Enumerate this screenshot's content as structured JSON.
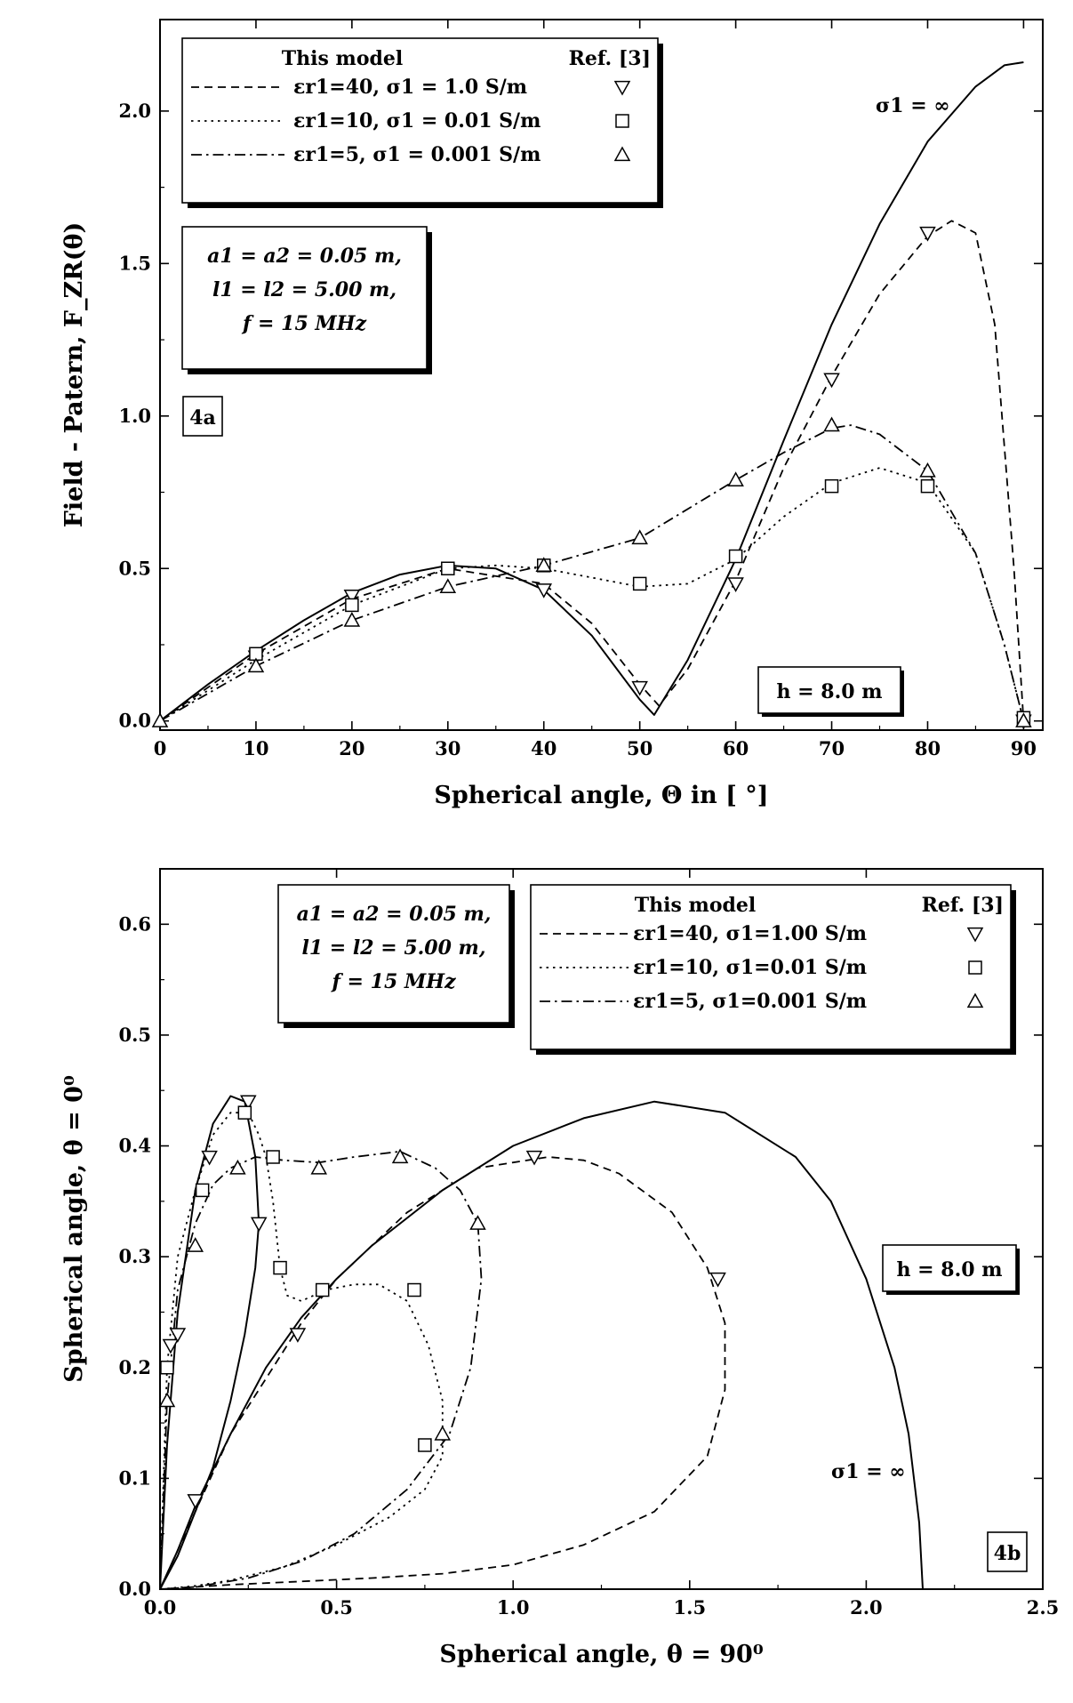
{
  "chart_data": [
    {
      "id": "4a",
      "type": "line",
      "tag": "4a",
      "xlabel": "Spherical angle, Θ in [ °]",
      "ylabel": "Field - Patern, F_ZR(θ)",
      "xlim": [
        0,
        92
      ],
      "ylim": [
        -0.03,
        2.3
      ],
      "xticks": [
        "0",
        "10",
        "20",
        "30",
        "40",
        "50",
        "60",
        "70",
        "80",
        "90"
      ],
      "yticks": [
        "0.0",
        "0.5",
        "1.0",
        "1.5",
        "2.0"
      ],
      "height_label": "h = 8.0 m",
      "sigma_inf_label": "σ1 = ∞",
      "params": [
        "a1 = a2 = 0.05 m,",
        "l1 = l2 = 5.00 m,",
        "f = 15 MHz"
      ],
      "legend": {
        "header_model": "This model",
        "header_ref": "Ref. [3]",
        "entries": [
          {
            "text": "εr1=40,  σ1 = 1.0 S/m",
            "style": "dashed",
            "marker": "triangle-down"
          },
          {
            "text": "εr1=10,  σ1 = 0.01 S/m",
            "style": "dotted",
            "marker": "square"
          },
          {
            "text": "εr1=5,    σ1 = 0.001 S/m",
            "style": "dashdot",
            "marker": "triangle-up"
          }
        ]
      },
      "series": [
        {
          "name": "σ1 = ∞",
          "style": "solid",
          "x": [
            0,
            5,
            10,
            15,
            20,
            25,
            30,
            35,
            40,
            45,
            50,
            51.5,
            55,
            60,
            65,
            70,
            75,
            80,
            85,
            88,
            90
          ],
          "y": [
            0,
            0.12,
            0.23,
            0.33,
            0.42,
            0.48,
            0.51,
            0.5,
            0.43,
            0.28,
            0.07,
            0.02,
            0.2,
            0.53,
            0.92,
            1.3,
            1.63,
            1.9,
            2.08,
            2.15,
            2.16
          ]
        },
        {
          "name": "εr1=40,  σ1 = 1.0 S/m",
          "style": "dashed",
          "x": [
            0,
            10,
            20,
            30,
            40,
            45,
            50,
            52,
            55,
            60,
            65,
            70,
            75,
            80,
            82.5,
            85,
            87,
            89,
            90
          ],
          "y": [
            0,
            0.22,
            0.4,
            0.5,
            0.45,
            0.32,
            0.12,
            0.05,
            0.17,
            0.46,
            0.83,
            1.13,
            1.4,
            1.59,
            1.64,
            1.6,
            1.3,
            0.5,
            0
          ]
        },
        {
          "name": "εr1=10,  σ1 = 0.01 S/m",
          "style": "dotted",
          "x": [
            0,
            10,
            20,
            30,
            35,
            40,
            45,
            50,
            55,
            60,
            65,
            70,
            75,
            80,
            85,
            88,
            90
          ],
          "y": [
            0,
            0.2,
            0.38,
            0.5,
            0.51,
            0.5,
            0.47,
            0.44,
            0.45,
            0.53,
            0.67,
            0.78,
            0.83,
            0.78,
            0.55,
            0.25,
            0
          ]
        },
        {
          "name": "εr1=5,    σ1 = 0.001 S/m",
          "style": "dashdot",
          "x": [
            0,
            10,
            20,
            30,
            40,
            50,
            60,
            65,
            70,
            72,
            75,
            80,
            85,
            88,
            90
          ],
          "y": [
            0,
            0.18,
            0.33,
            0.44,
            0.51,
            0.6,
            0.79,
            0.88,
            0.96,
            0.97,
            0.94,
            0.82,
            0.55,
            0.25,
            0
          ]
        }
      ],
      "markers": [
        {
          "series": "εr1=40,  σ1 = 1.0 S/m",
          "marker": "triangle-down",
          "x": [
            10,
            20,
            40,
            50,
            60,
            70,
            80,
            90
          ],
          "y": [
            0.21,
            0.41,
            0.43,
            0.11,
            0.45,
            1.12,
            1.6,
            0
          ]
        },
        {
          "series": "εr1=10,  σ1 = 0.01 S/m",
          "marker": "square",
          "x": [
            10,
            20,
            30,
            40,
            50,
            60,
            70,
            80,
            90
          ],
          "y": [
            0.22,
            0.38,
            0.5,
            0.51,
            0.45,
            0.54,
            0.77,
            0.77,
            0.01
          ]
        },
        {
          "series": "εr1=5,    σ1 = 0.001 S/m",
          "marker": "triangle-up",
          "x": [
            0,
            10,
            20,
            30,
            40,
            50,
            60,
            70,
            80,
            90
          ],
          "y": [
            0,
            0.18,
            0.33,
            0.44,
            0.51,
            0.6,
            0.79,
            0.97,
            0.82,
            0
          ]
        }
      ]
    },
    {
      "id": "4b",
      "type": "line",
      "tag": "4b",
      "xlabel": "Spherical angle, θ = 90⁰",
      "ylabel": "Spherical angle, θ = 0⁰",
      "xlim": [
        0,
        2.5
      ],
      "ylim": [
        0,
        0.65
      ],
      "xticks": [
        "0.0",
        "0.5",
        "1.0",
        "1.5",
        "2.0",
        "2.5"
      ],
      "yticks": [
        "0.0",
        "0.1",
        "0.2",
        "0.3",
        "0.4",
        "0.5",
        "0.6"
      ],
      "height_label": "h = 8.0 m",
      "sigma_inf_label": "σ1 = ∞",
      "params": [
        "a1 = a2 = 0.05 m,",
        "l1 = l2 = 5.00 m,",
        "f = 15 MHz"
      ],
      "legend": {
        "header_model": "This model",
        "header_ref": "Ref. [3]",
        "entries": [
          {
            "text": "εr1=40,  σ1=1.00 S/m",
            "style": "dashed",
            "marker": "triangle-down"
          },
          {
            "text": "εr1=10,  σ1=0.01 S/m",
            "style": "dotted",
            "marker": "square"
          },
          {
            "text": "εr1=5,    σ1=0.001 S/m",
            "style": "dashdot",
            "marker": "triangle-up"
          }
        ]
      },
      "series": [
        {
          "name": "σ1 = ∞ (main lobe)",
          "style": "solid",
          "x": [
            0,
            0.05,
            0.1,
            0.2,
            0.3,
            0.4,
            0.5,
            0.6,
            0.8,
            1.0,
            1.2,
            1.4,
            1.6,
            1.8,
            1.9,
            2.0,
            2.08,
            2.12,
            2.15,
            2.16
          ],
          "y": [
            0,
            0.035,
            0.075,
            0.14,
            0.2,
            0.245,
            0.28,
            0.31,
            0.36,
            0.4,
            0.425,
            0.44,
            0.43,
            0.39,
            0.35,
            0.28,
            0.2,
            0.14,
            0.06,
            0
          ]
        },
        {
          "name": "σ1 = ∞ (upper lobe)",
          "style": "solid",
          "x": [
            0,
            0.02,
            0.05,
            0.1,
            0.15,
            0.2,
            0.24,
            0.27,
            0.28,
            0.27,
            0.24,
            0.2,
            0.15,
            0.1,
            0.05,
            0
          ],
          "y": [
            0,
            0.13,
            0.25,
            0.36,
            0.42,
            0.445,
            0.44,
            0.39,
            0.33,
            0.29,
            0.23,
            0.17,
            0.11,
            0.07,
            0.03,
            0
          ]
        },
        {
          "name": "εr1=40,  σ1=1.00 S/m",
          "style": "dashed",
          "x": [
            0,
            0.1,
            0.2,
            0.3,
            0.4,
            0.5,
            0.6,
            0.7,
            0.8,
            0.9,
            1.0,
            1.1,
            1.2,
            1.3,
            1.45,
            1.55,
            1.6,
            1.6,
            1.55,
            1.4,
            1.2,
            1.0,
            0.8,
            0.6,
            0.4,
            0.2,
            0
          ],
          "y": [
            0,
            0.07,
            0.14,
            0.19,
            0.24,
            0.28,
            0.31,
            0.34,
            0.36,
            0.38,
            0.385,
            0.39,
            0.387,
            0.375,
            0.34,
            0.29,
            0.24,
            0.18,
            0.12,
            0.07,
            0.04,
            0.022,
            0.014,
            0.01,
            0.007,
            0.004,
            0
          ]
        },
        {
          "name": "εr1=10,  σ1=0.01 S/m",
          "style": "dotted",
          "x": [
            0,
            0.02,
            0.05,
            0.1,
            0.15,
            0.2,
            0.25,
            0.28,
            0.3,
            0.32,
            0.34,
            0.36,
            0.4,
            0.47,
            0.55,
            0.62,
            0.7,
            0.76,
            0.8,
            0.8,
            0.75,
            0.65,
            0.5,
            0.35,
            0.2,
            0.1,
            0
          ],
          "y": [
            0,
            0.2,
            0.3,
            0.36,
            0.41,
            0.43,
            0.43,
            0.41,
            0.39,
            0.35,
            0.29,
            0.265,
            0.26,
            0.27,
            0.275,
            0.275,
            0.26,
            0.22,
            0.17,
            0.12,
            0.09,
            0.065,
            0.04,
            0.02,
            0.008,
            0.003,
            0
          ]
        },
        {
          "name": "εr1=5,    σ1=0.001 S/m",
          "style": "dashdot",
          "x": [
            0,
            0.02,
            0.05,
            0.1,
            0.15,
            0.2,
            0.27,
            0.35,
            0.45,
            0.55,
            0.68,
            0.78,
            0.85,
            0.9,
            0.91,
            0.88,
            0.82,
            0.7,
            0.55,
            0.4,
            0.25,
            0.1,
            0
          ],
          "y": [
            0,
            0.17,
            0.27,
            0.33,
            0.365,
            0.38,
            0.39,
            0.387,
            0.385,
            0.39,
            0.395,
            0.38,
            0.36,
            0.33,
            0.28,
            0.2,
            0.14,
            0.09,
            0.05,
            0.025,
            0.01,
            0.002,
            0
          ]
        }
      ],
      "markers": [
        {
          "series": "εr1=40,  σ1=1.00 S/m",
          "marker": "triangle-down",
          "x": [
            0.03,
            0.05,
            0.14,
            0.25,
            0.28,
            0.1,
            0.39,
            1.06,
            1.58
          ],
          "y": [
            0.22,
            0.23,
            0.39,
            0.44,
            0.33,
            0.08,
            0.23,
            0.39,
            0.28
          ]
        },
        {
          "series": "εr1=10,  σ1=0.01 S/m",
          "marker": "square",
          "x": [
            0.02,
            0.12,
            0.24,
            0.32,
            0.34,
            0.46,
            0.72,
            0.75
          ],
          "y": [
            0.2,
            0.36,
            0.43,
            0.39,
            0.29,
            0.27,
            0.27,
            0.13
          ]
        },
        {
          "series": "εr1=5,    σ1=0.001 S/m",
          "marker": "triangle-up",
          "x": [
            0.02,
            0.1,
            0.22,
            0.45,
            0.68,
            0.9,
            0.8
          ],
          "y": [
            0.17,
            0.31,
            0.38,
            0.38,
            0.39,
            0.33,
            0.14
          ]
        }
      ]
    }
  ]
}
